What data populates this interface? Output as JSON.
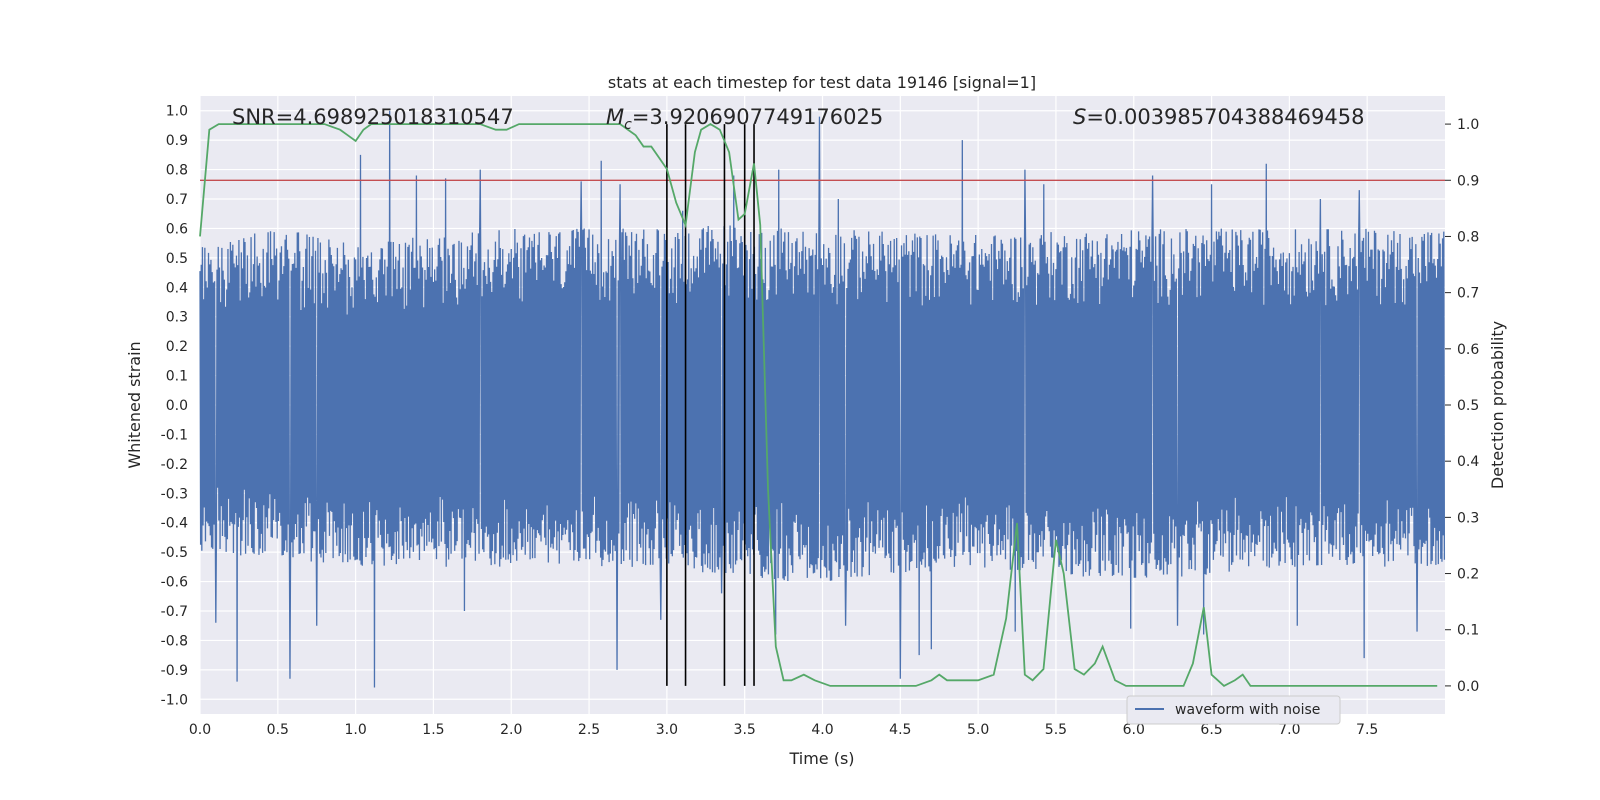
{
  "chart_data": {
    "type": "line",
    "title": "stats at each timestep for test data 19146 [signal=1]",
    "xlabel": "Time (s)",
    "ylabel_left": "Whitened strain",
    "ylabel_right": "Detection probability",
    "xlim": [
      0.0,
      8.0
    ],
    "ylim_left": [
      -1.05,
      1.05
    ],
    "ylim_right": [
      -0.05,
      1.05
    ],
    "x_ticks": [
      "0.0",
      "0.5",
      "1.0",
      "1.5",
      "2.0",
      "2.5",
      "3.0",
      "3.5",
      "4.0",
      "4.5",
      "5.0",
      "5.5",
      "6.0",
      "6.5",
      "7.0",
      "7.5"
    ],
    "y_ticks_left": [
      "1.0",
      "0.9",
      "0.8",
      "0.7",
      "0.6",
      "0.5",
      "0.4",
      "0.3",
      "0.2",
      "0.1",
      "0.0",
      "-0.1",
      "-0.2",
      "-0.3",
      "-0.4",
      "-0.5",
      "-0.6",
      "-0.7",
      "-0.8",
      "-0.9",
      "-1.0"
    ],
    "y_ticks_right": [
      "1.0",
      "0.9",
      "0.8",
      "0.7",
      "0.6",
      "0.5",
      "0.4",
      "0.3",
      "0.2",
      "0.1",
      "0.0"
    ],
    "grid": true,
    "legend": {
      "placement": "lower-center",
      "entries": [
        "waveform with noise"
      ]
    },
    "annotations": {
      "snr": "SNR=4.698925018310547",
      "mc_symbol": "M",
      "mc_sub": "c",
      "mc_value": "=3.9206907749176025",
      "s_symbol": "S",
      "s_value": "=0.003985704388469458"
    },
    "threshold": {
      "value": 0.9,
      "axis": "right",
      "color": "#c44e52"
    },
    "vlines_x": [
      3.0,
      3.12,
      3.37,
      3.5,
      3.56
    ],
    "series": [
      {
        "name": "waveform with noise",
        "axis": "left",
        "color": "#4c72b0",
        "duration": 8.0,
        "samples": 2048,
        "envelope_upper": [
          [
            0.0,
            0.55
          ],
          [
            0.5,
            0.6
          ],
          [
            1.0,
            0.55
          ],
          [
            2.0,
            0.6
          ],
          [
            2.5,
            0.6
          ],
          [
            3.0,
            0.6
          ],
          [
            3.4,
            0.62
          ],
          [
            3.6,
            0.6
          ],
          [
            4.0,
            0.6
          ],
          [
            5.0,
            0.58
          ],
          [
            6.0,
            0.6
          ],
          [
            7.0,
            0.6
          ],
          [
            8.0,
            0.6
          ]
        ],
        "envelope_lower": [
          [
            0.0,
            -0.5
          ],
          [
            1.0,
            -0.55
          ],
          [
            2.0,
            -0.55
          ],
          [
            3.0,
            -0.55
          ],
          [
            3.6,
            -0.6
          ],
          [
            4.0,
            -0.6
          ],
          [
            5.0,
            -0.55
          ],
          [
            6.0,
            -0.6
          ],
          [
            7.0,
            -0.55
          ],
          [
            8.0,
            -0.55
          ]
        ],
        "peaks_upper": [
          [
            0.24,
            0.72
          ],
          [
            1.03,
            0.85
          ],
          [
            1.22,
            1.0
          ],
          [
            1.39,
            0.78
          ],
          [
            1.58,
            0.77
          ],
          [
            1.8,
            0.8
          ],
          [
            2.45,
            0.76
          ],
          [
            2.58,
            0.83
          ],
          [
            2.7,
            0.75
          ],
          [
            3.1,
            0.66
          ],
          [
            3.43,
            0.78
          ],
          [
            3.72,
            0.8
          ],
          [
            3.98,
            0.98
          ],
          [
            4.1,
            0.7
          ],
          [
            4.9,
            0.9
          ],
          [
            5.3,
            0.8
          ],
          [
            5.42,
            0.75
          ],
          [
            6.12,
            0.78
          ],
          [
            6.5,
            0.75
          ],
          [
            6.85,
            0.82
          ],
          [
            7.2,
            0.7
          ],
          [
            7.45,
            0.73
          ],
          [
            7.82,
            0.75
          ]
        ],
        "peaks_lower": [
          [
            0.1,
            -0.74
          ],
          [
            0.24,
            -0.94
          ],
          [
            0.58,
            -0.93
          ],
          [
            0.75,
            -0.75
          ],
          [
            1.12,
            -0.96
          ],
          [
            1.7,
            -0.7
          ],
          [
            2.68,
            -0.9
          ],
          [
            2.96,
            -0.73
          ],
          [
            3.35,
            -0.64
          ],
          [
            3.7,
            -0.78
          ],
          [
            4.15,
            -0.75
          ],
          [
            4.5,
            -0.93
          ],
          [
            4.62,
            -0.85
          ],
          [
            4.7,
            -0.83
          ],
          [
            5.24,
            -0.77
          ],
          [
            5.98,
            -0.76
          ],
          [
            6.28,
            -0.75
          ],
          [
            6.45,
            -0.78
          ],
          [
            7.05,
            -0.75
          ],
          [
            7.48,
            -0.86
          ],
          [
            7.82,
            -0.77
          ]
        ]
      },
      {
        "name": "detection probability",
        "axis": "right",
        "color": "#55a868",
        "x": [
          0.0,
          0.06,
          0.12,
          0.18,
          0.25,
          0.3,
          0.4,
          0.5,
          0.6,
          0.7,
          0.8,
          0.9,
          0.95,
          1.0,
          1.05,
          1.1,
          1.2,
          1.3,
          1.4,
          1.5,
          1.6,
          1.7,
          1.8,
          1.9,
          1.97,
          2.05,
          2.2,
          2.3,
          2.4,
          2.5,
          2.6,
          2.7,
          2.75,
          2.8,
          2.85,
          2.9,
          2.95,
          3.0,
          3.06,
          3.12,
          3.18,
          3.22,
          3.28,
          3.34,
          3.4,
          3.46,
          3.5,
          3.56,
          3.6,
          3.65,
          3.7,
          3.75,
          3.8,
          3.88,
          3.95,
          4.05,
          4.2,
          4.35,
          4.5,
          4.6,
          4.7,
          4.75,
          4.8,
          4.85,
          5.0,
          5.1,
          5.18,
          5.25,
          5.3,
          5.35,
          5.42,
          5.5,
          5.55,
          5.62,
          5.68,
          5.75,
          5.8,
          5.88,
          5.95,
          6.1,
          6.25,
          6.32,
          6.38,
          6.45,
          6.5,
          6.58,
          6.65,
          6.7,
          6.75,
          6.85,
          7.0,
          7.2,
          7.4,
          7.6,
          7.8,
          7.95
        ],
        "y": [
          0.8,
          0.99,
          1.0,
          1.0,
          1.0,
          1.0,
          1.0,
          1.0,
          1.0,
          1.0,
          1.0,
          0.99,
          0.98,
          0.97,
          0.99,
          1.0,
          1.0,
          1.0,
          1.0,
          1.0,
          1.0,
          1.0,
          1.0,
          0.99,
          0.99,
          1.0,
          1.0,
          1.0,
          1.0,
          1.0,
          1.0,
          1.0,
          0.99,
          0.98,
          0.96,
          0.96,
          0.94,
          0.92,
          0.86,
          0.82,
          0.95,
          0.99,
          1.0,
          0.99,
          0.95,
          0.83,
          0.84,
          0.93,
          0.82,
          0.35,
          0.07,
          0.01,
          0.01,
          0.02,
          0.01,
          0.0,
          0.0,
          0.0,
          0.0,
          0.0,
          0.01,
          0.02,
          0.01,
          0.01,
          0.01,
          0.02,
          0.12,
          0.29,
          0.02,
          0.01,
          0.03,
          0.26,
          0.2,
          0.03,
          0.02,
          0.04,
          0.07,
          0.01,
          0.0,
          0.0,
          0.0,
          0.0,
          0.04,
          0.14,
          0.02,
          0.0,
          0.01,
          0.02,
          0.0,
          0.0,
          0.0,
          0.0,
          0.0,
          0.0,
          0.0,
          0.0
        ]
      }
    ]
  }
}
